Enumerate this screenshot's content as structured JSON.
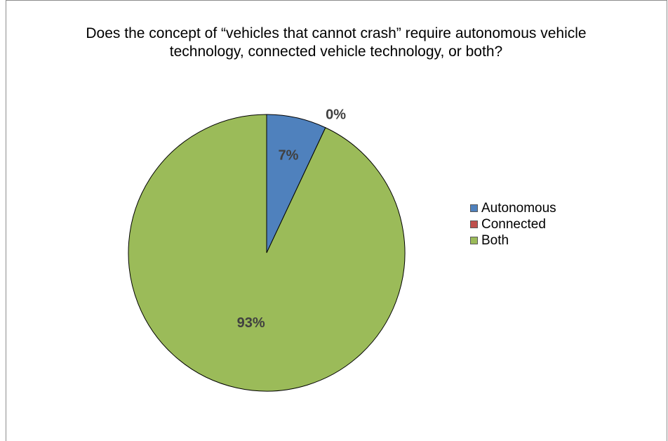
{
  "chart_data": {
    "type": "pie",
    "title": "Does the concept of “vehicles that cannot crash” require autonomous vehicle technology, connected vehicle technology, or both?",
    "categories": [
      "Autonomous",
      "Connected",
      "Both"
    ],
    "values": [
      7,
      0,
      93
    ],
    "data_labels": [
      "7%",
      "0%",
      "93%"
    ],
    "colors": [
      "#4f81bd",
      "#c0504d",
      "#9bbb59"
    ],
    "legend_position": "right"
  }
}
